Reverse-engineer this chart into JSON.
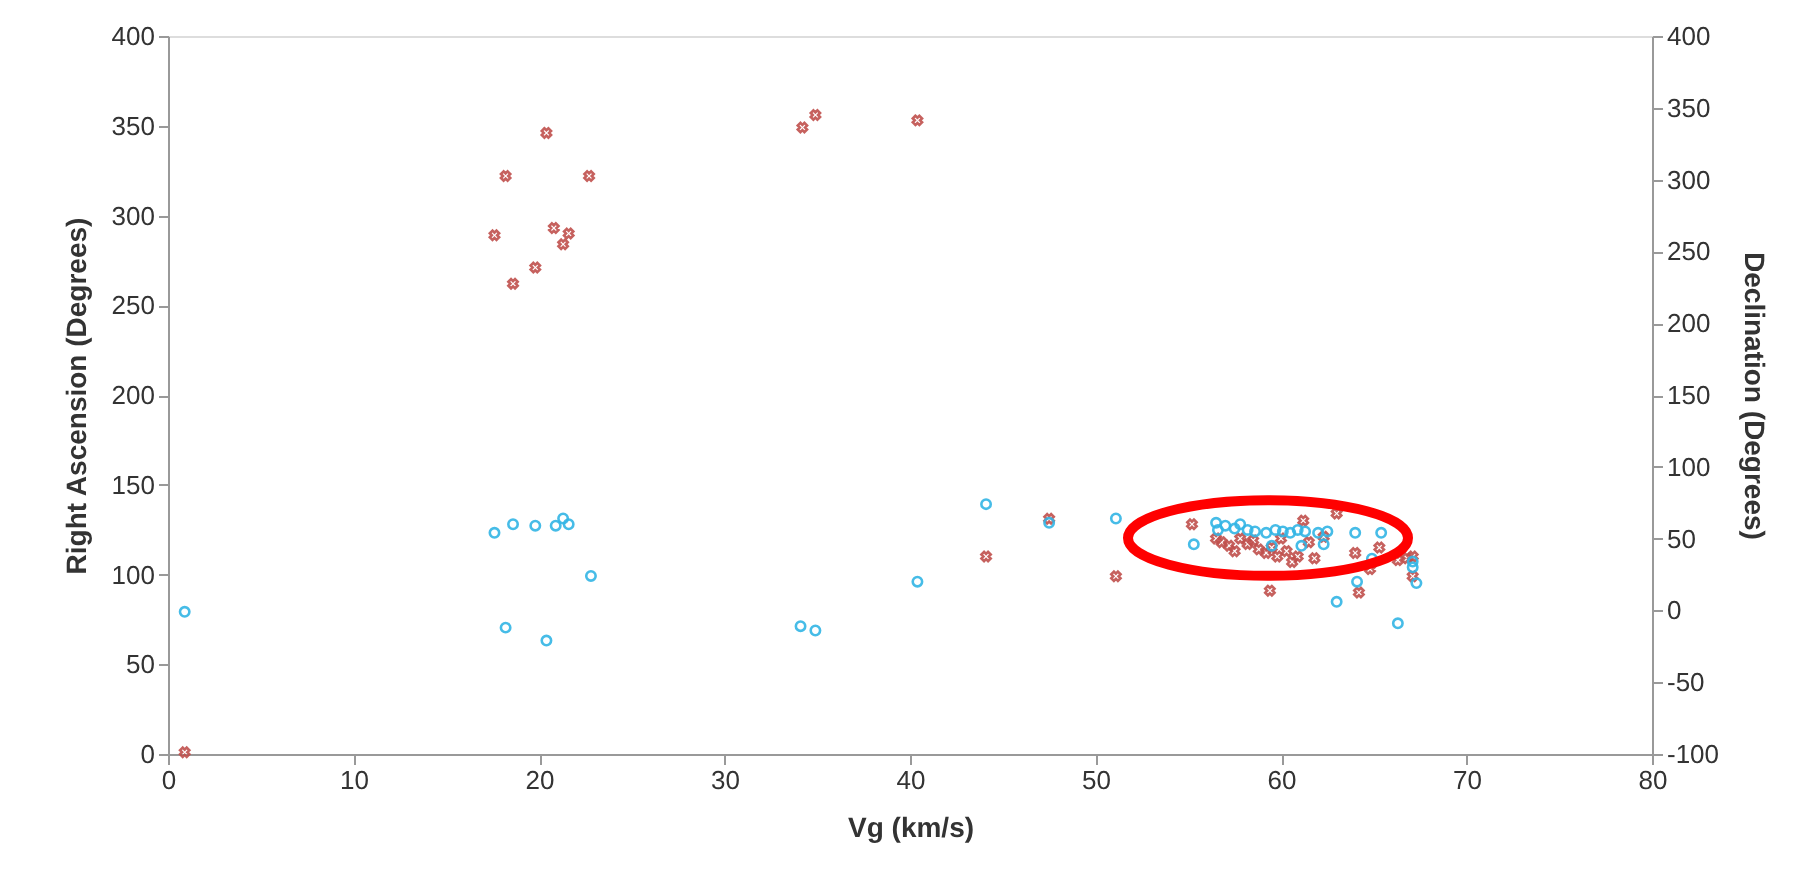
{
  "chart_data": {
    "type": "scatter",
    "xlabel": "Vg (km/s)",
    "ylabel": "Right Ascension (Degrees)",
    "y2label": "Declination (Degrees)",
    "xlim": [
      0,
      80
    ],
    "xticks": [
      0,
      10,
      20,
      30,
      40,
      50,
      60,
      70,
      80
    ],
    "ylim": [
      0,
      400
    ],
    "yticks": [
      0,
      50,
      100,
      150,
      200,
      250,
      300,
      350,
      400
    ],
    "y2lim": [
      -100,
      400
    ],
    "y2ticks": [
      -100,
      -50,
      0,
      50,
      100,
      150,
      200,
      250,
      300,
      350,
      400
    ],
    "grid": false,
    "series": [
      {
        "color": "#c0504d",
        "marker": "cross",
        "x": [
          0.9,
          17.6,
          18.2,
          18.6,
          19.8,
          20.4,
          20.8,
          21.3,
          21.6,
          22.7,
          34.2,
          34.9,
          40.4,
          44.1,
          47.5,
          51.1,
          55.2,
          56.5,
          56.8,
          57.2,
          57.5,
          57.8,
          58.2,
          58.5,
          58.8,
          59.2,
          59.4,
          59.5,
          59.8,
          60.0,
          60.3,
          60.6,
          60.9,
          61.2,
          61.5,
          61.8,
          62.3,
          63.0,
          64.0,
          64.2,
          64.8,
          65.3,
          66.3,
          66.8,
          67.1,
          67.1
        ],
        "values": [
          1,
          289,
          322,
          262,
          271,
          346,
          293,
          284,
          290,
          322,
          349,
          356,
          353,
          110,
          131,
          99,
          128,
          120,
          118,
          116,
          113,
          120,
          117,
          119,
          114,
          112,
          91,
          115,
          110,
          120,
          113,
          107,
          110,
          130,
          118,
          109,
          121,
          134,
          112,
          90,
          103,
          115,
          108,
          109,
          110,
          99
        ]
      },
      {
        "color": "#33b5e5",
        "marker": "circle",
        "axis": "y2",
        "x": [
          0.9,
          17.6,
          18.2,
          18.6,
          19.8,
          20.4,
          20.9,
          21.3,
          21.6,
          22.8,
          34.1,
          34.9,
          40.4,
          44.1,
          47.5,
          51.1,
          55.3,
          56.5,
          56.6,
          57.0,
          57.5,
          57.8,
          58.2,
          58.6,
          59.2,
          59.5,
          59.7,
          60.1,
          60.5,
          60.9,
          61.1,
          61.3,
          62.0,
          62.3,
          62.5,
          63.0,
          64.0,
          64.1,
          64.9,
          65.4,
          66.3,
          67.1,
          67.3,
          67.1
        ],
        "values": [
          -1,
          54,
          -12,
          60,
          59,
          -21,
          59,
          64,
          60,
          24,
          -11,
          -14,
          20,
          74,
          61,
          64,
          46,
          61,
          56,
          59,
          57,
          60,
          56,
          55,
          54,
          45,
          56,
          55,
          54,
          56,
          45,
          55,
          54,
          46,
          55,
          6,
          54,
          20,
          36,
          54,
          -9,
          34,
          19,
          30
        ]
      }
    ]
  }
}
